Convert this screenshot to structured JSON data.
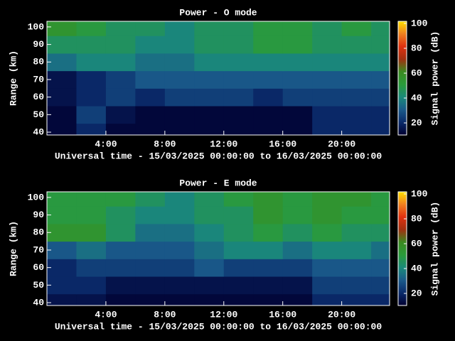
{
  "chart_data": [
    {
      "type": "heatmap",
      "title": "Power - O mode",
      "xlabel": "Universal time - 15/03/2025 00:00:00 to 16/03/2025 00:00:00",
      "ylabel": "Range (km)",
      "clabel": "Signal power (dB)",
      "x": [
        1,
        3,
        5,
        7,
        9,
        11,
        13,
        15,
        17,
        19,
        21,
        23
      ],
      "y": [
        40,
        50,
        60,
        70,
        80,
        90,
        100
      ],
      "values": [
        [
          12,
          20,
          12,
          12,
          12,
          12,
          12,
          12,
          12,
          20,
          20,
          20
        ],
        [
          12,
          25,
          15,
          12,
          12,
          12,
          12,
          12,
          12,
          20,
          20,
          20
        ],
        [
          15,
          20,
          25,
          20,
          25,
          25,
          25,
          20,
          25,
          25,
          25,
          25
        ],
        [
          15,
          20,
          25,
          30,
          30,
          30,
          30,
          30,
          30,
          30,
          30,
          30
        ],
        [
          35,
          40,
          40,
          35,
          35,
          40,
          40,
          40,
          40,
          40,
          40,
          40
        ],
        [
          45,
          45,
          45,
          40,
          40,
          45,
          45,
          50,
          50,
          45,
          45,
          45
        ],
        [
          55,
          50,
          45,
          45,
          40,
          45,
          45,
          50,
          50,
          45,
          50,
          45
        ]
      ],
      "xlim": [
        0,
        23.25
      ],
      "ylim": [
        38.4,
        103.2
      ],
      "xticks": [
        {
          "value": 4,
          "label": "4:00"
        },
        {
          "value": 8,
          "label": "8:00"
        },
        {
          "value": 12,
          "label": "12:00"
        },
        {
          "value": 16,
          "label": "16:00"
        },
        {
          "value": 20,
          "label": "20:00"
        }
      ],
      "yticks": [
        40,
        50,
        60,
        70,
        80,
        90,
        100
      ],
      "clim": [
        10.3,
        101.7
      ],
      "cticks": [
        20,
        40,
        60,
        80,
        100
      ]
    },
    {
      "type": "heatmap",
      "title": "Power - E mode",
      "xlabel": "Universal time - 15/03/2025 00:00:00 to 16/03/2025 00:00:00",
      "ylabel": "Range (km)",
      "clabel": "Signal power (dB)",
      "x": [
        1,
        3,
        5,
        7,
        9,
        11,
        13,
        15,
        17,
        19,
        21,
        23
      ],
      "y": [
        40,
        50,
        60,
        70,
        80,
        90,
        100
      ],
      "values": [
        [
          15,
          15,
          12,
          12,
          12,
          12,
          12,
          12,
          12,
          20,
          20,
          20
        ],
        [
          20,
          20,
          15,
          15,
          15,
          15,
          15,
          15,
          15,
          25,
          25,
          25
        ],
        [
          20,
          25,
          25,
          25,
          25,
          30,
          25,
          25,
          25,
          30,
          30,
          30
        ],
        [
          30,
          35,
          30,
          30,
          30,
          35,
          40,
          40,
          35,
          40,
          40,
          35
        ],
        [
          55,
          55,
          45,
          35,
          35,
          40,
          45,
          50,
          45,
          50,
          45,
          45
        ],
        [
          50,
          50,
          45,
          40,
          40,
          45,
          45,
          55,
          50,
          55,
          50,
          50
        ],
        [
          50,
          50,
          50,
          45,
          40,
          45,
          50,
          55,
          50,
          55,
          55,
          50
        ]
      ],
      "xlim": [
        0,
        23.25
      ],
      "ylim": [
        38.4,
        103.2
      ],
      "xticks": [
        {
          "value": 4,
          "label": "4:00"
        },
        {
          "value": 8,
          "label": "8:00"
        },
        {
          "value": 12,
          "label": "12:00"
        },
        {
          "value": 16,
          "label": "16:00"
        },
        {
          "value": 20,
          "label": "20:00"
        }
      ],
      "yticks": [
        40,
        50,
        60,
        70,
        80,
        90,
        100
      ],
      "clim": [
        10.3,
        101.7
      ],
      "cticks": [
        20,
        40,
        60,
        80,
        100
      ]
    }
  ],
  "colormap": [
    "#000030",
    "#0a2a6a",
    "#1a5a8a",
    "#1a8a7a",
    "#2a9a3a",
    "#3a8a20",
    "#a03010",
    "#e03010",
    "#f08020",
    "#ffe000"
  ]
}
